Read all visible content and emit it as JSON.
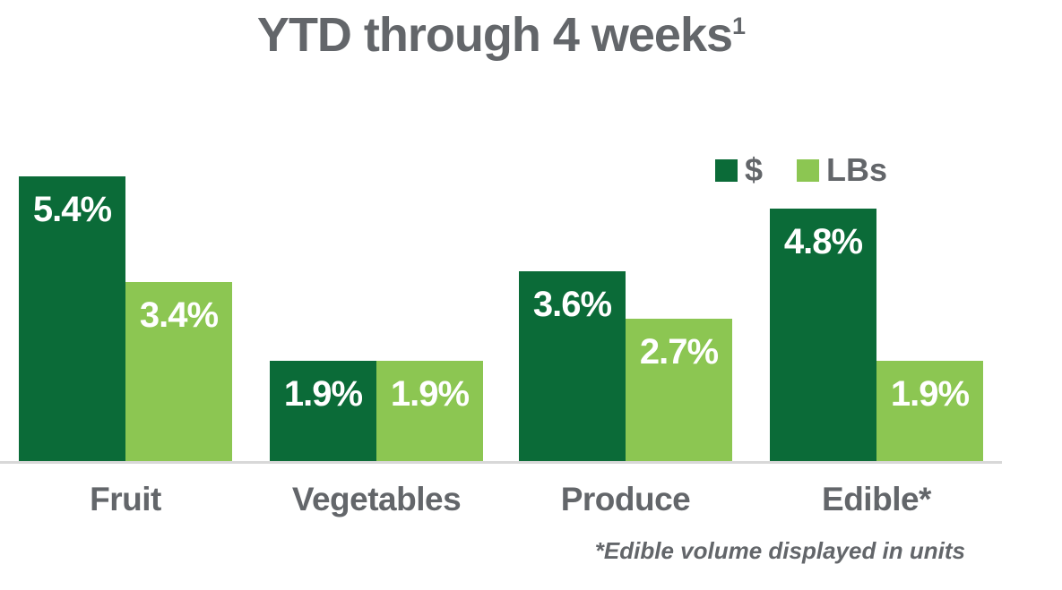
{
  "title": {
    "text": "YTD through 4 weeks",
    "superscript": "1"
  },
  "legend": [
    {
      "label": "$",
      "color": "#0B6B38"
    },
    {
      "label": "LBs",
      "color": "#8CC652"
    }
  ],
  "footnote": "*Edible volume displayed in units",
  "colors": {
    "dark_green": "#0B6B38",
    "light_green": "#8CC652",
    "text_gray": "#63666A",
    "axis_gray": "#D8D8D8",
    "value_label_white": "#FFFFFF"
  },
  "chart_data": {
    "type": "bar",
    "title": "YTD through 4 weeks¹",
    "categories": [
      "Fruit",
      "Vegetables",
      "Produce",
      "Edible*"
    ],
    "series": [
      {
        "name": "$",
        "color": "#0B6B38",
        "values": [
          5.4,
          1.9,
          3.6,
          4.8
        ],
        "labels": [
          "5.4%",
          "1.9%",
          "3.6%",
          "4.8%"
        ]
      },
      {
        "name": "LBs",
        "color": "#8CC652",
        "values": [
          3.4,
          1.9,
          2.7,
          1.9
        ],
        "labels": [
          "3.4%",
          "1.9%",
          "2.7%",
          "1.9%"
        ]
      }
    ],
    "unit": "%",
    "ylim": [
      0,
      5.5
    ],
    "grid": false,
    "axis_ticks": "none",
    "legend_position": "top-right",
    "value_labels": "inside-top",
    "footnote": "*Edible volume displayed in units"
  }
}
